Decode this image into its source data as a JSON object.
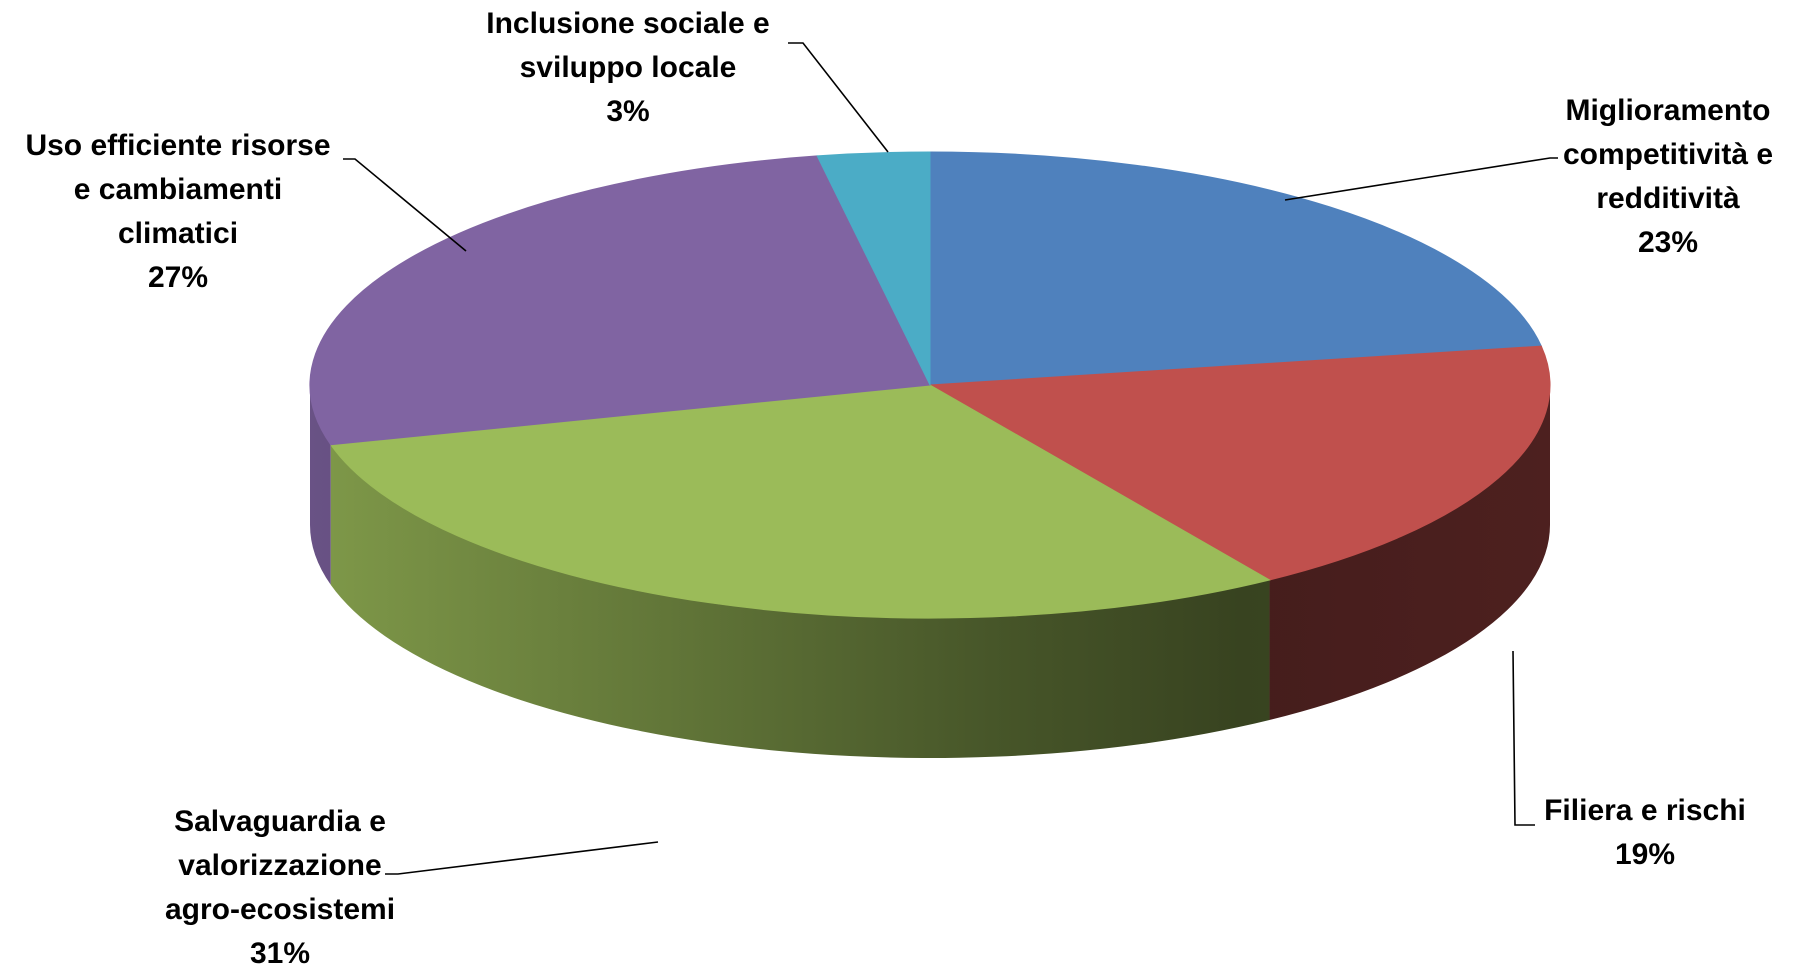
{
  "chart_data": {
    "type": "pie",
    "style": "3d",
    "slices": [
      {
        "label_lines": [
          "Miglioramento",
          "competitività e",
          "redditività"
        ],
        "pct_text": "23%",
        "value": 23,
        "color": "#4F81BD"
      },
      {
        "label_lines": [
          "Filiera e rischi"
        ],
        "pct_text": "19%",
        "value": 19,
        "color": "#C0504D"
      },
      {
        "label_lines": [
          "Salvaguardia e",
          "valorizzazione",
          "agro-ecosistemi"
        ],
        "pct_text": "31%",
        "value": 31,
        "color": "#9BBB59"
      },
      {
        "label_lines": [
          "Uso efficiente risorse",
          "e cambiamenti",
          "climatici"
        ],
        "pct_text": "27%",
        "value": 27,
        "color": "#8064A2"
      },
      {
        "label_lines": [
          "Inclusione sociale e",
          "sviluppo locale"
        ],
        "pct_text": "3%",
        "value": 3,
        "color": "#4BACC6"
      }
    ],
    "legend": "none"
  }
}
